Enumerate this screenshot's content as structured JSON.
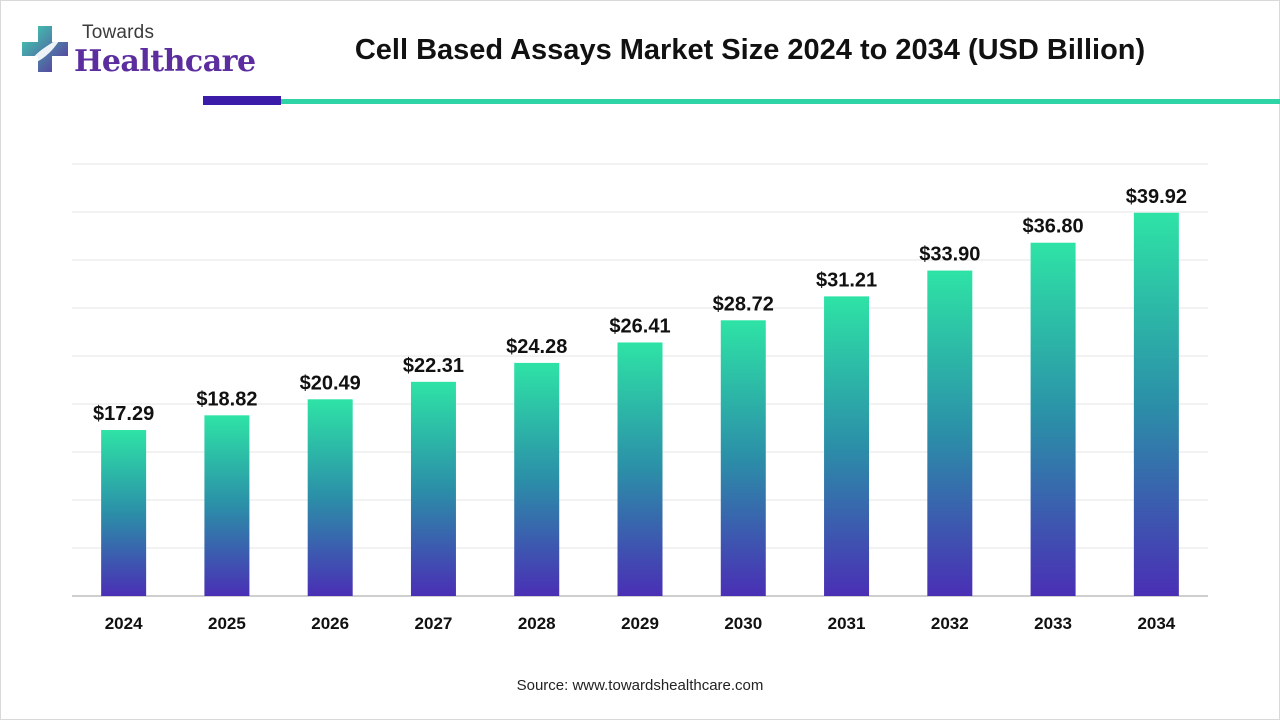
{
  "logo": {
    "small_text": "Towards",
    "big_text": "Healthcare"
  },
  "title": "Cell Based Assays Market Size 2024 to 2034 (USD Billion)",
  "source": "Source: www.towardshealthcare.com",
  "colors": {
    "bar_top": "#2ee3a6",
    "bar_mid": "#2b8fa8",
    "bar_bottom": "#4a2fb5",
    "accent_dark": "#3b1ca8",
    "accent_teal": "#2ed3a6",
    "gridline": "#e6e6e6"
  },
  "chart_data": {
    "type": "bar",
    "categories": [
      "2024",
      "2025",
      "2026",
      "2027",
      "2028",
      "2029",
      "2030",
      "2031",
      "2032",
      "2033",
      "2034"
    ],
    "values": [
      17.29,
      18.82,
      20.49,
      22.31,
      24.28,
      26.41,
      28.72,
      31.21,
      33.9,
      36.8,
      39.92
    ],
    "data_labels": [
      "$17.29",
      "$18.82",
      "$20.49",
      "$22.31",
      "$24.28",
      "$26.41",
      "$28.72",
      "$31.21",
      "$33.90",
      "$36.80",
      "$39.92"
    ],
    "ylim": [
      0,
      45
    ],
    "grid": true,
    "legend": "none"
  }
}
